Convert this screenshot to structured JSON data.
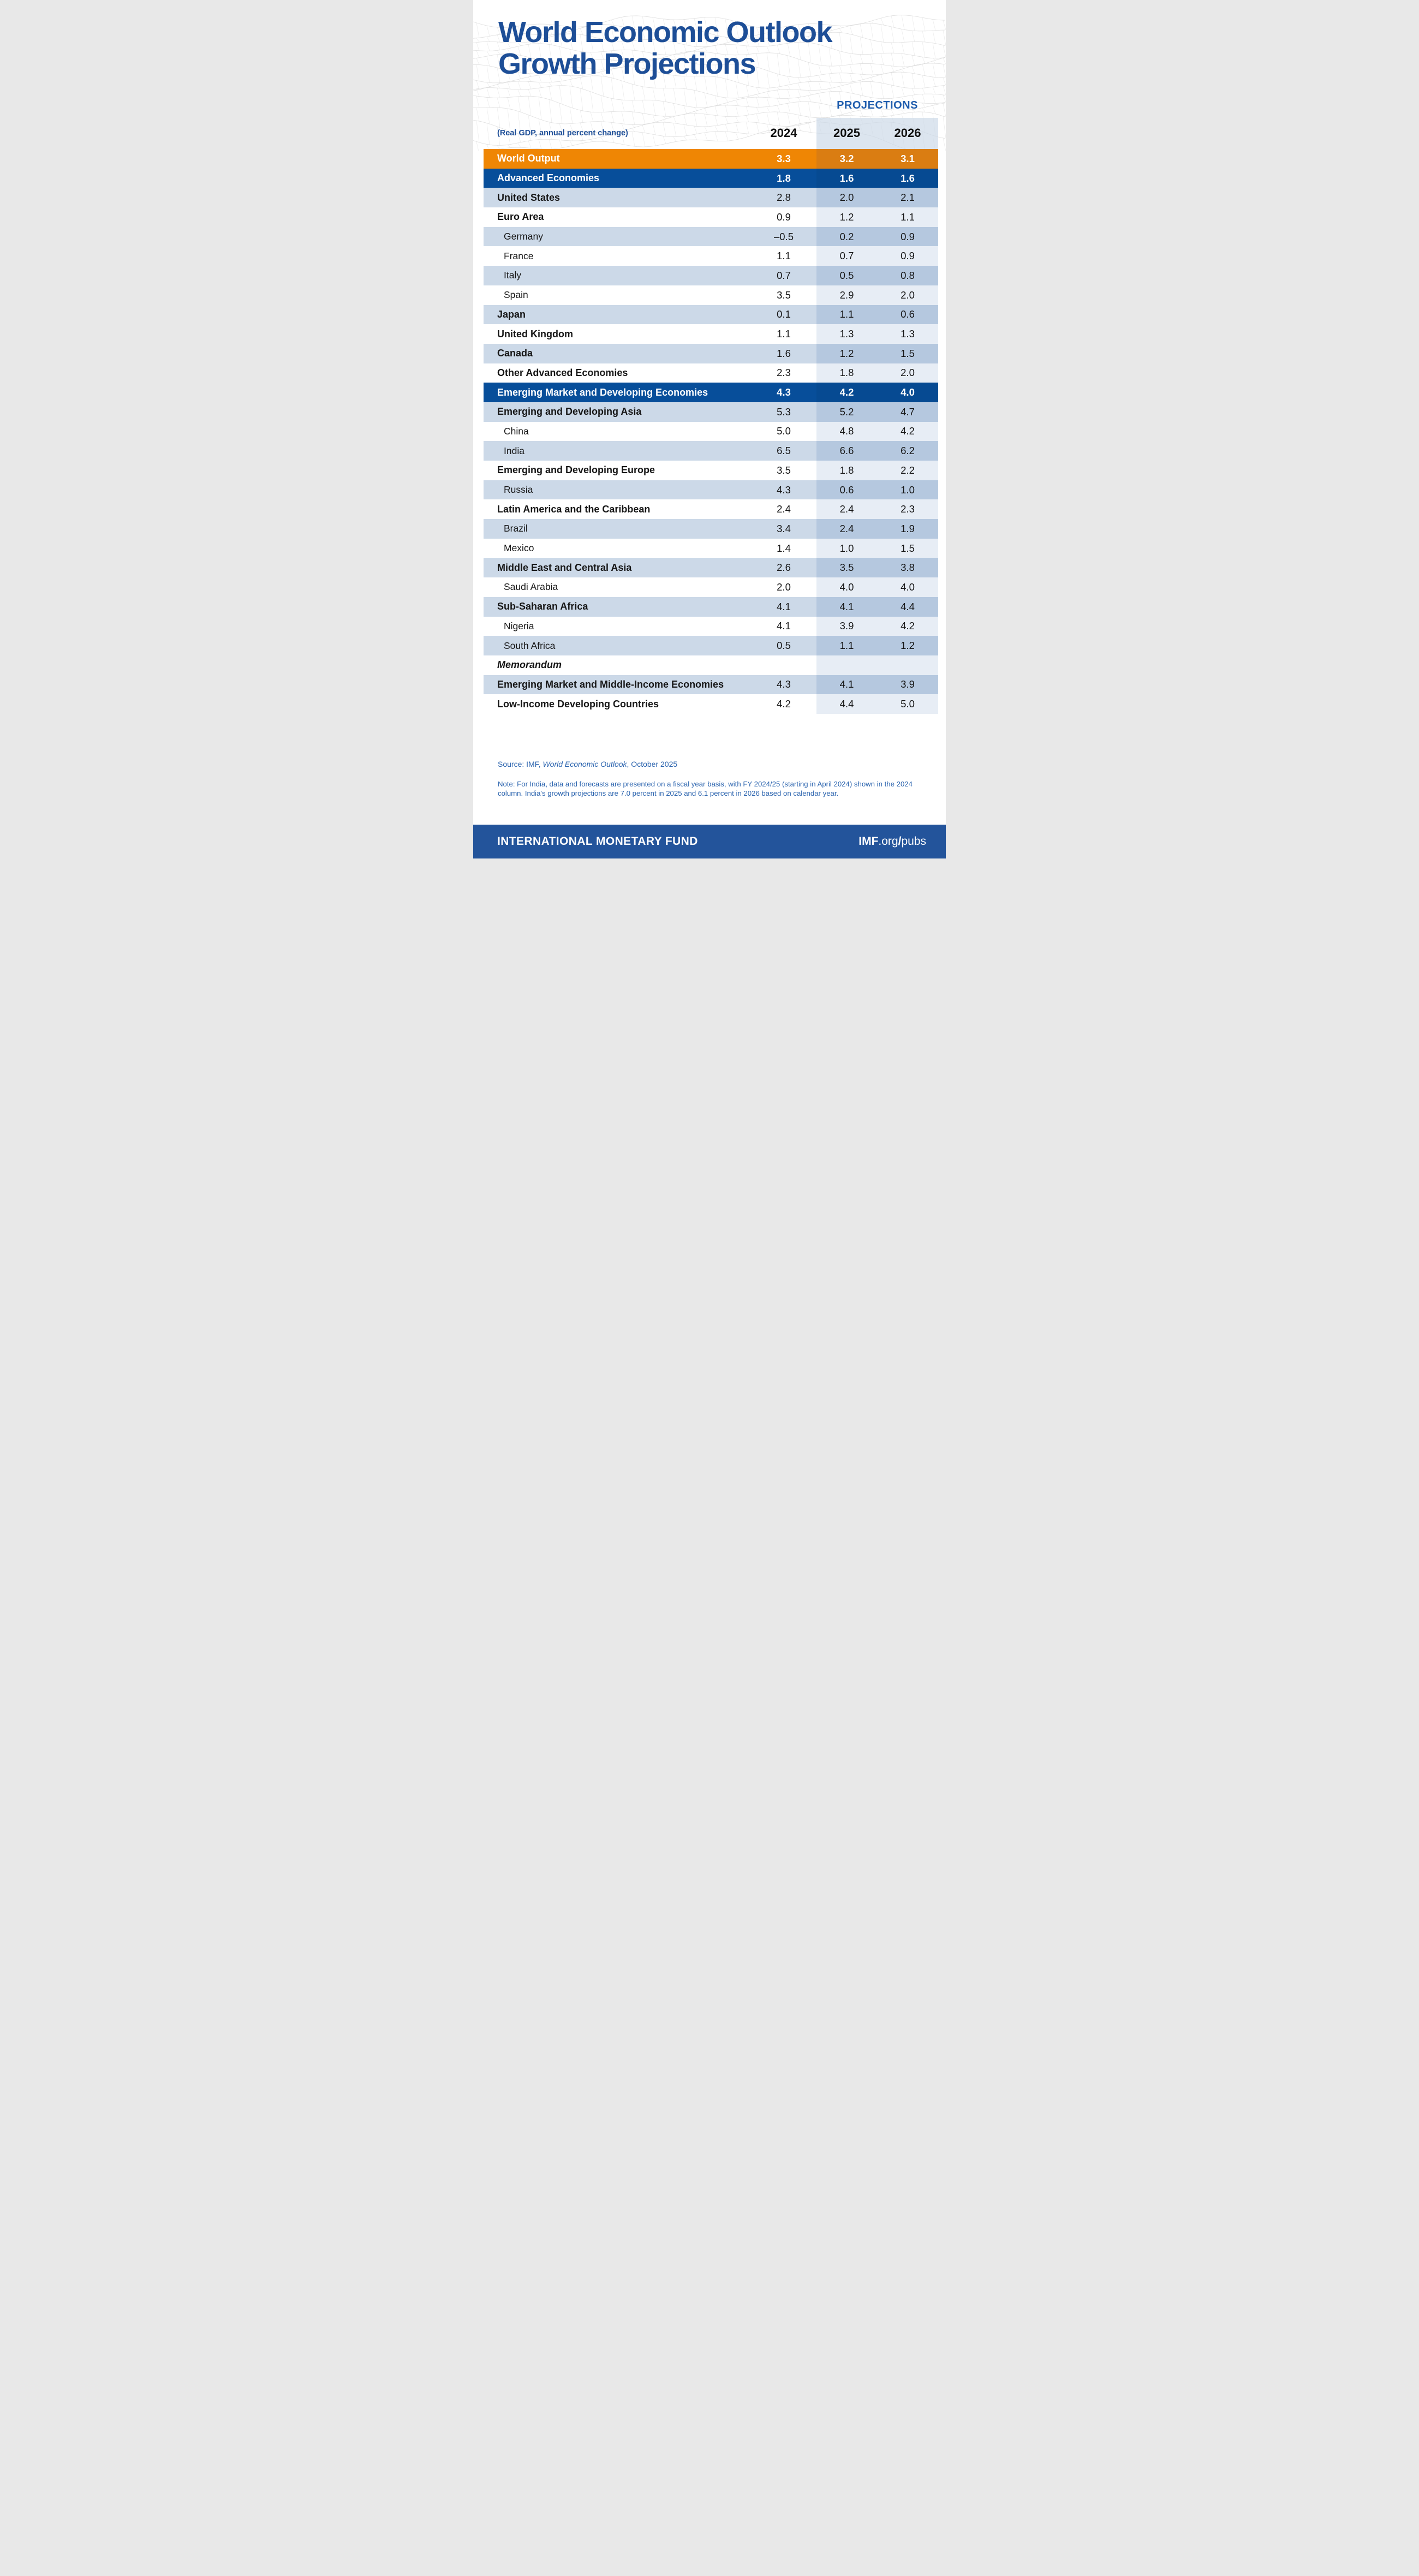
{
  "colors": {
    "title_blue": "#1D4E97",
    "accent_blue": "#1E5CAD",
    "navy_row": "#074E9A",
    "orange_row": "#EF8604",
    "orange_row_proj": "#DA7D12",
    "light_row": "#CCD9E8",
    "light_row_proj": "#B5C8DF",
    "white_row_proj": "#E7EDF5",
    "header_band": "#CBD8E8",
    "footer_blue": "#23549B",
    "note_blue": "#2A63AE",
    "text_black": "#161616",
    "mesh_gray": "#D2D2D2"
  },
  "title": {
    "line1": "World Economic Outlook",
    "line2": "Growth Projections"
  },
  "header": {
    "projections_label": "PROJECTIONS",
    "unit_label": "(Real GDP, annual percent change)",
    "years": [
      "2024",
      "2025",
      "2026"
    ]
  },
  "chart_data": {
    "type": "table",
    "title": "World Economic Outlook Growth Projections",
    "subtitle": "(Real GDP, annual percent change)",
    "columns": [
      "2024",
      "2025",
      "2026"
    ],
    "projection_columns": [
      "2025",
      "2026"
    ],
    "rows": [
      {
        "label": "World Output",
        "style": "orange",
        "bold": true,
        "indent": false,
        "values": [
          "3.3",
          "3.2",
          "3.1"
        ]
      },
      {
        "label": "Advanced Economies",
        "style": "navy",
        "bold": true,
        "indent": false,
        "values": [
          "1.8",
          "1.6",
          "1.6"
        ]
      },
      {
        "label": "United States",
        "style": "light",
        "bold": true,
        "indent": false,
        "values": [
          "2.8",
          "2.0",
          "2.1"
        ]
      },
      {
        "label": "Euro Area",
        "style": "white",
        "bold": true,
        "indent": false,
        "values": [
          "0.9",
          "1.2",
          "1.1"
        ]
      },
      {
        "label": "Germany",
        "style": "light",
        "bold": false,
        "indent": true,
        "values": [
          "–0.5",
          "0.2",
          "0.9"
        ]
      },
      {
        "label": "France",
        "style": "white",
        "bold": false,
        "indent": true,
        "values": [
          "1.1",
          "0.7",
          "0.9"
        ]
      },
      {
        "label": "Italy",
        "style": "light",
        "bold": false,
        "indent": true,
        "values": [
          "0.7",
          "0.5",
          "0.8"
        ]
      },
      {
        "label": "Spain",
        "style": "white",
        "bold": false,
        "indent": true,
        "values": [
          "3.5",
          "2.9",
          "2.0"
        ]
      },
      {
        "label": "Japan",
        "style": "light",
        "bold": true,
        "indent": false,
        "values": [
          "0.1",
          "1.1",
          "0.6"
        ]
      },
      {
        "label": "United Kingdom",
        "style": "white",
        "bold": true,
        "indent": false,
        "values": [
          "1.1",
          "1.3",
          "1.3"
        ]
      },
      {
        "label": "Canada",
        "style": "light",
        "bold": true,
        "indent": false,
        "values": [
          "1.6",
          "1.2",
          "1.5"
        ]
      },
      {
        "label": "Other Advanced Economies",
        "style": "white",
        "bold": true,
        "indent": false,
        "values": [
          "2.3",
          "1.8",
          "2.0"
        ]
      },
      {
        "label": "Emerging Market and Developing Economies",
        "style": "navy",
        "bold": true,
        "indent": false,
        "values": [
          "4.3",
          "4.2",
          "4.0"
        ]
      },
      {
        "label": "Emerging and Developing Asia",
        "style": "light",
        "bold": true,
        "indent": false,
        "values": [
          "5.3",
          "5.2",
          "4.7"
        ]
      },
      {
        "label": "China",
        "style": "white",
        "bold": false,
        "indent": true,
        "values": [
          "5.0",
          "4.8",
          "4.2"
        ]
      },
      {
        "label": "India",
        "style": "light",
        "bold": false,
        "indent": true,
        "values": [
          "6.5",
          "6.6",
          "6.2"
        ]
      },
      {
        "label": "Emerging and Developing Europe",
        "style": "white",
        "bold": true,
        "indent": false,
        "values": [
          "3.5",
          "1.8",
          "2.2"
        ]
      },
      {
        "label": "Russia",
        "style": "light",
        "bold": false,
        "indent": true,
        "values": [
          "4.3",
          "0.6",
          "1.0"
        ]
      },
      {
        "label": "Latin America and the Caribbean",
        "style": "white",
        "bold": true,
        "indent": false,
        "values": [
          "2.4",
          "2.4",
          "2.3"
        ]
      },
      {
        "label": "Brazil",
        "style": "light",
        "bold": false,
        "indent": true,
        "values": [
          "3.4",
          "2.4",
          "1.9"
        ]
      },
      {
        "label": "Mexico",
        "style": "white",
        "bold": false,
        "indent": true,
        "values": [
          "1.4",
          "1.0",
          "1.5"
        ]
      },
      {
        "label": "Middle East and Central Asia",
        "style": "light",
        "bold": true,
        "indent": false,
        "values": [
          "2.6",
          "3.5",
          "3.8"
        ]
      },
      {
        "label": "Saudi Arabia",
        "style": "white",
        "bold": false,
        "indent": true,
        "values": [
          "2.0",
          "4.0",
          "4.0"
        ]
      },
      {
        "label": "Sub-Saharan Africa",
        "style": "light",
        "bold": true,
        "indent": false,
        "values": [
          "4.1",
          "4.1",
          "4.4"
        ]
      },
      {
        "label": "Nigeria",
        "style": "white",
        "bold": false,
        "indent": true,
        "values": [
          "4.1",
          "3.9",
          "4.2"
        ]
      },
      {
        "label": "South Africa",
        "style": "light",
        "bold": false,
        "indent": true,
        "values": [
          "0.5",
          "1.1",
          "1.2"
        ]
      },
      {
        "label": "Memorandum",
        "style": "white",
        "bold": true,
        "indent": false,
        "memo": true,
        "values": [
          "",
          "",
          ""
        ]
      },
      {
        "label": "Emerging Market and Middle-Income Economies",
        "style": "light",
        "bold": true,
        "indent": false,
        "values": [
          "4.3",
          "4.1",
          "3.9"
        ]
      },
      {
        "label": "Low-Income Developing Countries",
        "style": "white",
        "bold": true,
        "indent": false,
        "values": [
          "4.2",
          "4.4",
          "5.0"
        ]
      }
    ]
  },
  "source": {
    "prefix": "Source: IMF, ",
    "italic": "World Economic Outlook",
    "suffix": ", October 2025"
  },
  "note": {
    "text": "Note: For India, data and forecasts are presented on a fiscal year basis, with FY 2024/25 (starting in April 2024) shown in the 2024 column. India's growth projections are 7.0 percent in 2025 and 6.1 percent in 2026 based on calendar year."
  },
  "footer": {
    "org": "INTERNATIONAL MONETARY FUND",
    "brand": {
      "imf": "IMF",
      "org": ".org",
      "slash": "/",
      "pubs": "pubs"
    }
  }
}
